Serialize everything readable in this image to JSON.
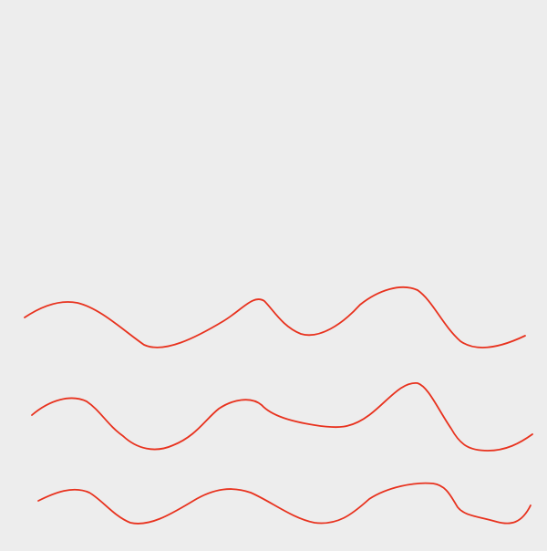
{
  "canvas": {
    "background_color": "#ededed"
  },
  "waves": {
    "stroke_color": "#e8321e",
    "count": 3
  }
}
